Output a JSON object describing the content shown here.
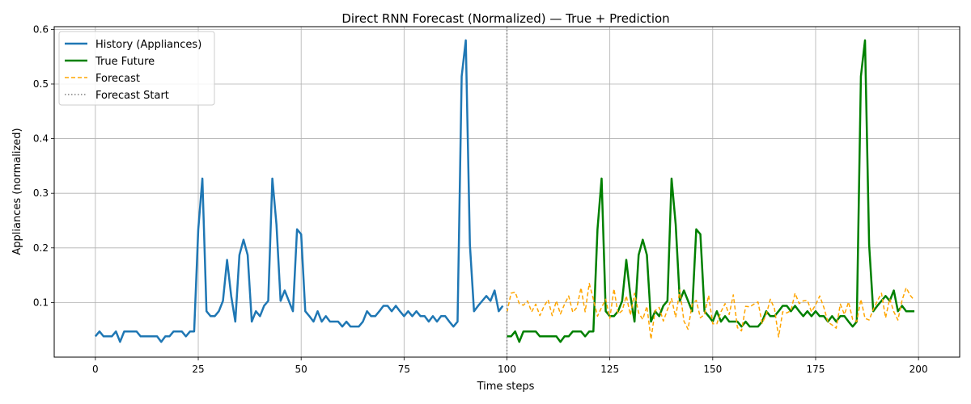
{
  "chart_data": {
    "type": "line",
    "title": "Direct RNN Forecast (Normalized) — True + Prediction",
    "xlabel": "Time steps",
    "ylabel": "Appliances (normalized)",
    "xlim": [
      -10,
      210
    ],
    "ylim": [
      0.0,
      0.605
    ],
    "xticks": [
      0,
      25,
      50,
      75,
      100,
      125,
      150,
      175,
      200
    ],
    "yticks": [
      0.1,
      0.2,
      0.3,
      0.4,
      0.5,
      0.6
    ],
    "xtick_labels": [
      "0",
      "25",
      "50",
      "75",
      "100",
      "125",
      "150",
      "175",
      "200"
    ],
    "ytick_labels": [
      "0.1",
      "0.2",
      "0.3",
      "0.4",
      "0.5",
      "0.6"
    ],
    "grid": true,
    "legend_position": "top-left",
    "forecast_start": 100,
    "series": [
      {
        "name": "History (Appliances)",
        "color": "#1f77b4",
        "style": "solid",
        "x_start": 0,
        "values": [
          0.038,
          0.047,
          0.038,
          0.038,
          0.038,
          0.047,
          0.028,
          0.047,
          0.047,
          0.047,
          0.047,
          0.038,
          0.038,
          0.038,
          0.038,
          0.038,
          0.028,
          0.038,
          0.038,
          0.047,
          0.047,
          0.047,
          0.038,
          0.047,
          0.047,
          0.234,
          0.327,
          0.084,
          0.075,
          0.075,
          0.084,
          0.103,
          0.178,
          0.112,
          0.065,
          0.187,
          0.215,
          0.187,
          0.065,
          0.084,
          0.075,
          0.094,
          0.103,
          0.327,
          0.243,
          0.103,
          0.122,
          0.103,
          0.084,
          0.234,
          0.225,
          0.084,
          0.075,
          0.065,
          0.084,
          0.065,
          0.075,
          0.065,
          0.065,
          0.065,
          0.056,
          0.065,
          0.056,
          0.056,
          0.056,
          0.065,
          0.084,
          0.075,
          0.075,
          0.084,
          0.094,
          0.094,
          0.084,
          0.094,
          0.084,
          0.075,
          0.084,
          0.075,
          0.084,
          0.075,
          0.075,
          0.065,
          0.075,
          0.065,
          0.075,
          0.075,
          0.065,
          0.056,
          0.065,
          0.514,
          0.58,
          0.206,
          0.084,
          0.094,
          0.103,
          0.112,
          0.103,
          0.122,
          0.084,
          0.094
        ]
      },
      {
        "name": "True Future",
        "color": "#008000",
        "style": "solid",
        "x_start": 100,
        "values": [
          0.038,
          0.038,
          0.047,
          0.028,
          0.047,
          0.047,
          0.047,
          0.047,
          0.038,
          0.038,
          0.038,
          0.038,
          0.038,
          0.028,
          0.038,
          0.038,
          0.047,
          0.047,
          0.047,
          0.038,
          0.047,
          0.047,
          0.234,
          0.327,
          0.084,
          0.075,
          0.075,
          0.084,
          0.103,
          0.178,
          0.112,
          0.065,
          0.187,
          0.215,
          0.187,
          0.065,
          0.084,
          0.075,
          0.094,
          0.103,
          0.327,
          0.243,
          0.103,
          0.122,
          0.103,
          0.084,
          0.234,
          0.225,
          0.084,
          0.075,
          0.065,
          0.084,
          0.065,
          0.075,
          0.065,
          0.065,
          0.065,
          0.056,
          0.065,
          0.056,
          0.056,
          0.056,
          0.065,
          0.084,
          0.075,
          0.075,
          0.084,
          0.094,
          0.094,
          0.084,
          0.094,
          0.084,
          0.075,
          0.084,
          0.075,
          0.084,
          0.075,
          0.075,
          0.065,
          0.075,
          0.065,
          0.075,
          0.075,
          0.065,
          0.056,
          0.065,
          0.514,
          0.58,
          0.206,
          0.084,
          0.094,
          0.103,
          0.112,
          0.103,
          0.122,
          0.084,
          0.094,
          0.084,
          0.084,
          0.084
        ]
      },
      {
        "name": "Forecast",
        "color": "#ffa500",
        "style": "dashed",
        "x_start": 100,
        "values": [
          0.082,
          0.117,
          0.119,
          0.098,
          0.095,
          0.103,
          0.083,
          0.097,
          0.076,
          0.093,
          0.105,
          0.076,
          0.103,
          0.079,
          0.097,
          0.112,
          0.082,
          0.091,
          0.127,
          0.083,
          0.135,
          0.106,
          0.075,
          0.091,
          0.106,
          0.071,
          0.125,
          0.079,
          0.085,
          0.112,
          0.077,
          0.117,
          0.081,
          0.069,
          0.093,
          0.033,
          0.085,
          0.091,
          0.066,
          0.087,
          0.107,
          0.073,
          0.123,
          0.066,
          0.051,
          0.097,
          0.104,
          0.072,
          0.078,
          0.113,
          0.061,
          0.061,
          0.083,
          0.098,
          0.078,
          0.114,
          0.054,
          0.048,
          0.093,
          0.092,
          0.097,
          0.101,
          0.062,
          0.078,
          0.106,
          0.089,
          0.037,
          0.083,
          0.081,
          0.085,
          0.117,
          0.098,
          0.103,
          0.104,
          0.083,
          0.096,
          0.112,
          0.091,
          0.064,
          0.059,
          0.053,
          0.097,
          0.078,
          0.101,
          0.069,
          0.065,
          0.106,
          0.071,
          0.068,
          0.087,
          0.103,
          0.117,
          0.072,
          0.107,
          0.083,
          0.068,
          0.104,
          0.127,
          0.113,
          0.104
        ]
      }
    ]
  },
  "legend": {
    "items": [
      {
        "label": "History (Appliances)",
        "color": "#1f77b4",
        "style": "solid"
      },
      {
        "label": "True Future",
        "color": "#008000",
        "style": "solid"
      },
      {
        "label": "Forecast",
        "color": "#ffa500",
        "style": "dashed"
      },
      {
        "label": "Forecast Start",
        "color": "#808080",
        "style": "dotted"
      }
    ]
  }
}
